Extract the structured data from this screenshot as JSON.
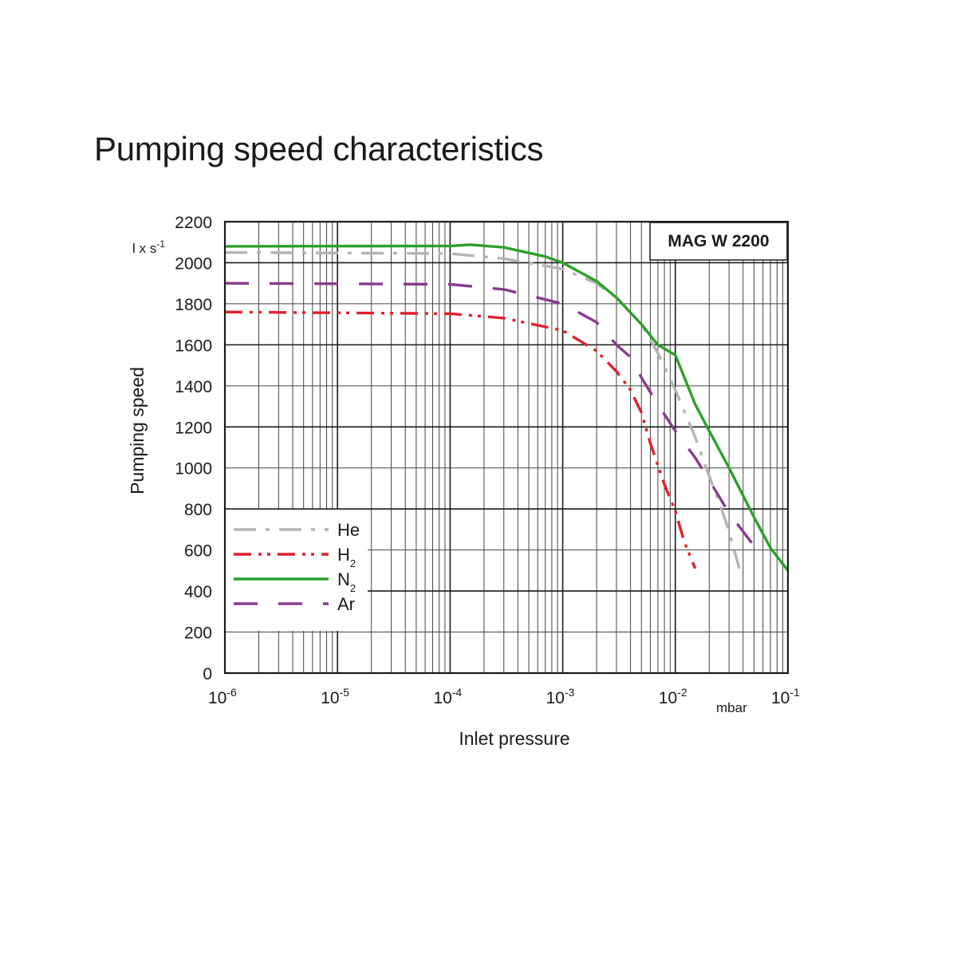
{
  "title": "Pumping speed characteristics",
  "chart_data": {
    "type": "line",
    "title": "Pumping speed characteristics",
    "model_label": "MAG W 2200",
    "xlabel": "Inlet pressure",
    "x_unit": "mbar",
    "ylabel": "Pumping speed",
    "y_unit": "l x s-1",
    "x_scale": "log",
    "xlim": [
      1e-06,
      0.1
    ],
    "ylim": [
      0,
      2200
    ],
    "x_ticks": [
      {
        "base": "10",
        "exp": "-6",
        "value": 1e-06
      },
      {
        "base": "10",
        "exp": "-5",
        "value": 1e-05
      },
      {
        "base": "10",
        "exp": "-4",
        "value": 0.0001
      },
      {
        "base": "10",
        "exp": "-3",
        "value": 0.001
      },
      {
        "base": "10",
        "exp": "-2",
        "value": 0.01
      },
      {
        "base": "10",
        "exp": "-1",
        "value": 0.1
      }
    ],
    "y_ticks": [
      "0",
      "200",
      "400",
      "600",
      "800",
      "1000",
      "1200",
      "1400",
      "1600",
      "1800",
      "2000",
      "2200"
    ],
    "grid": true,
    "legend_position": "bottom-left",
    "series": [
      {
        "name": "He",
        "sub": "",
        "color": "#b4b4b4",
        "dash": "dash-dot",
        "points": [
          [
            1e-06,
            2050
          ],
          [
            0.0001,
            2045
          ],
          [
            0.0003,
            2020
          ],
          [
            0.001,
            1970
          ],
          [
            0.002,
            1900
          ],
          [
            0.003,
            1830
          ],
          [
            0.005,
            1700
          ],
          [
            0.007,
            1560
          ],
          [
            0.01,
            1380
          ],
          [
            0.015,
            1150
          ],
          [
            0.02,
            960
          ],
          [
            0.025,
            820
          ],
          [
            0.03,
            690
          ],
          [
            0.037,
            510
          ]
        ]
      },
      {
        "name": "H",
        "sub": "2",
        "color": "#e0202c",
        "dash": "dash-dot-dot",
        "points": [
          [
            1e-06,
            1760
          ],
          [
            0.0001,
            1752
          ],
          [
            0.0003,
            1730
          ],
          [
            0.001,
            1670
          ],
          [
            0.002,
            1570
          ],
          [
            0.003,
            1470
          ],
          [
            0.004,
            1380
          ],
          [
            0.005,
            1270
          ],
          [
            0.006,
            1120
          ],
          [
            0.008,
            920
          ],
          [
            0.01,
            790
          ],
          [
            0.012,
            640
          ],
          [
            0.015,
            510
          ]
        ]
      },
      {
        "name": "N",
        "sub": "2",
        "color": "#2ca02c",
        "dash": "solid",
        "points": [
          [
            1e-06,
            2080
          ],
          [
            0.0001,
            2082
          ],
          [
            0.00015,
            2088
          ],
          [
            0.0003,
            2075
          ],
          [
            0.0007,
            2030
          ],
          [
            0.001,
            2000
          ],
          [
            0.002,
            1910
          ],
          [
            0.003,
            1830
          ],
          [
            0.005,
            1700
          ],
          [
            0.007,
            1600
          ],
          [
            0.01,
            1550
          ],
          [
            0.015,
            1310
          ],
          [
            0.02,
            1180
          ],
          [
            0.03,
            1000
          ],
          [
            0.05,
            760
          ],
          [
            0.07,
            610
          ],
          [
            0.1,
            500
          ]
        ]
      },
      {
        "name": "Ar",
        "sub": "",
        "color": "#8a3a90",
        "dash": "long-dash",
        "points": [
          [
            1e-06,
            1900
          ],
          [
            0.0001,
            1895
          ],
          [
            0.0003,
            1870
          ],
          [
            0.001,
            1800
          ],
          [
            0.002,
            1710
          ],
          [
            0.003,
            1600
          ],
          [
            0.004,
            1540
          ],
          [
            0.005,
            1440
          ],
          [
            0.007,
            1310
          ],
          [
            0.01,
            1180
          ],
          [
            0.015,
            1050
          ],
          [
            0.02,
            940
          ],
          [
            0.03,
            780
          ],
          [
            0.05,
            620
          ],
          [
            0.055,
            580
          ]
        ]
      }
    ]
  }
}
